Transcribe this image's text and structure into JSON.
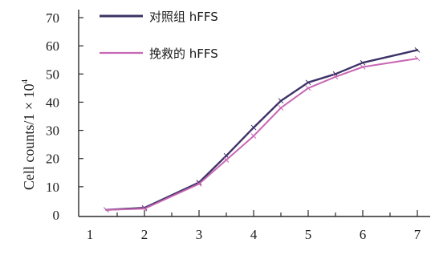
{
  "chart_data": {
    "type": "line",
    "x": [
      1.3,
      2,
      3,
      3.5,
      4,
      4.5,
      5,
      5.5,
      6,
      7
    ],
    "xticks": [
      "1",
      "2",
      "3",
      "4",
      "5",
      "6",
      "7"
    ],
    "yticks": [
      "0",
      "10",
      "20",
      "30",
      "40",
      "50",
      "60",
      "70"
    ],
    "ylabel": "Cell counts/1 × 10⁴",
    "ylabel_parts": {
      "main": "Cell counts/1 × 10",
      "sup": "4"
    },
    "xlim": [
      1,
      7
    ],
    "ylim": [
      0,
      70
    ],
    "series": [
      {
        "name": "对照组 hFFS",
        "color": "#3d3266",
        "values": [
          1.8,
          2.5,
          11.5,
          21,
          31,
          40.5,
          47,
          50,
          54,
          58.5
        ]
      },
      {
        "name": "挽救的 hFFS",
        "color": "#c867b4",
        "values": [
          1.8,
          2.2,
          11,
          19.5,
          28,
          38,
          45,
          49,
          52.5,
          55.5
        ]
      }
    ],
    "legend_position": "top-left"
  }
}
